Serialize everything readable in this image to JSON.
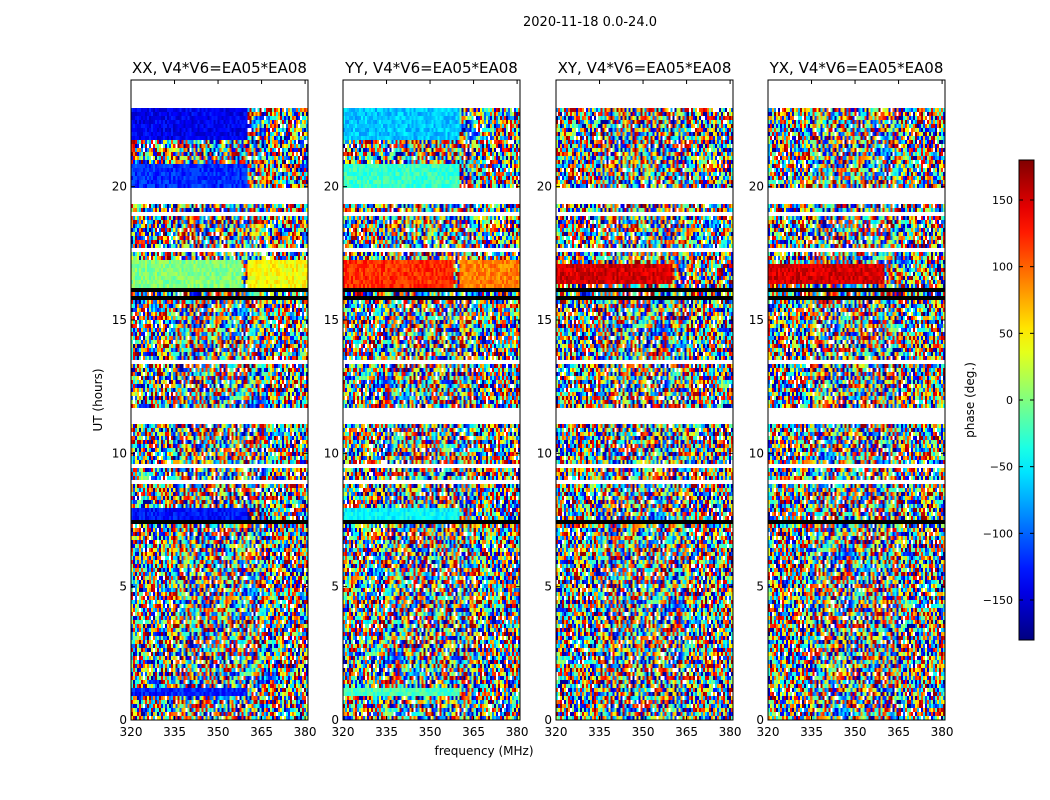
{
  "chart_data": {
    "type": "heatmap",
    "suptitle": "2020-11-18 0.0-24.0",
    "xlabel": "frequency (MHz)",
    "ylabel": "UT (hours)",
    "xlim": [
      320,
      381
    ],
    "ylim": [
      0,
      24
    ],
    "xticks": [
      320,
      335,
      350,
      365,
      380
    ],
    "yticks": [
      0,
      5,
      10,
      15,
      20
    ],
    "colorbar": {
      "label": "phase (deg.)",
      "range": [
        -180,
        180
      ],
      "ticks": [
        -150,
        -100,
        -50,
        0,
        50,
        100,
        150
      ],
      "colormap": "jet"
    },
    "flagged_time_ranges_hours": [
      [
        11.1,
        11.5
      ],
      [
        19.3,
        20.0
      ],
      [
        23.0,
        24.0
      ]
    ],
    "panels": [
      {
        "title": "XX, V4*V6=EA05*EA08",
        "coherent_blocks": [
          {
            "t_start": 0.9,
            "t_end": 1.2,
            "f_start": 320,
            "f_end": 360,
            "phase_deg": -125
          },
          {
            "t_start": 7.4,
            "t_end": 8.0,
            "f_start": 320,
            "f_end": 360,
            "phase_deg": -130
          },
          {
            "t_start": 16.2,
            "t_end": 17.2,
            "f_start": 320,
            "f_end": 358,
            "phase_deg": 0
          },
          {
            "t_start": 16.2,
            "t_end": 17.2,
            "f_start": 360,
            "f_end": 381,
            "phase_deg": 45
          },
          {
            "t_start": 19.8,
            "t_end": 20.8,
            "f_start": 320,
            "f_end": 360,
            "phase_deg": -120
          },
          {
            "t_start": 21.8,
            "t_end": 23.0,
            "f_start": 320,
            "f_end": 360,
            "phase_deg": -140
          }
        ]
      },
      {
        "title": "YY, V4*V6=EA05*EA08",
        "coherent_blocks": [
          {
            "t_start": 0.9,
            "t_end": 1.2,
            "f_start": 320,
            "f_end": 360,
            "phase_deg": -20
          },
          {
            "t_start": 7.4,
            "t_end": 8.0,
            "f_start": 320,
            "f_end": 360,
            "phase_deg": -45
          },
          {
            "t_start": 16.2,
            "t_end": 17.2,
            "f_start": 320,
            "f_end": 358,
            "phase_deg": 120
          },
          {
            "t_start": 16.2,
            "t_end": 17.2,
            "f_start": 360,
            "f_end": 381,
            "phase_deg": 90
          },
          {
            "t_start": 19.8,
            "t_end": 20.8,
            "f_start": 320,
            "f_end": 360,
            "phase_deg": -25
          },
          {
            "t_start": 21.8,
            "t_end": 23.0,
            "f_start": 320,
            "f_end": 360,
            "phase_deg": -65
          }
        ]
      },
      {
        "title": "XY, V4*V6=EA05*EA08",
        "coherent_blocks": [
          {
            "t_start": 16.3,
            "t_end": 17.1,
            "f_start": 320,
            "f_end": 360,
            "phase_deg": 150
          }
        ]
      },
      {
        "title": "YX, V4*V6=EA05*EA08",
        "coherent_blocks": [
          {
            "t_start": 16.3,
            "t_end": 17.1,
            "f_start": 320,
            "f_end": 360,
            "phase_deg": 150
          }
        ]
      }
    ]
  }
}
